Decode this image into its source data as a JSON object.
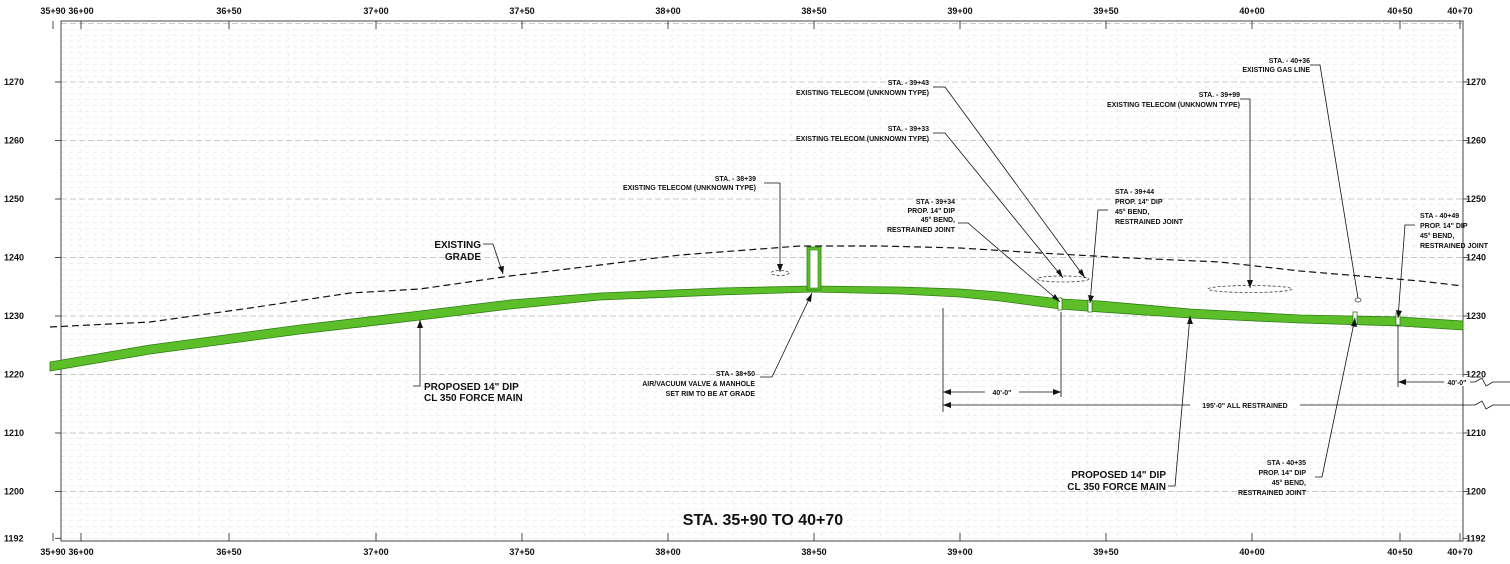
{
  "title": "STA. 35+90 TO 40+70",
  "stations_top": [
    "35+90",
    "36+00",
    "36+50",
    "37+00",
    "37+50",
    "38+00",
    "38+50",
    "39+00",
    "39+50",
    "40+00",
    "40+50",
    "40+70"
  ],
  "stations_bottom": [
    "35+90",
    "36+00",
    "36+50",
    "37+00",
    "37+50",
    "38+00",
    "38+50",
    "39+00",
    "39+50",
    "40+00",
    "40+50",
    "40+70"
  ],
  "elevations_left": [
    "1270",
    "1260",
    "1250",
    "1240",
    "1230",
    "1220",
    "1210",
    "1200",
    "1192"
  ],
  "elevations_right": [
    "1270",
    "1260",
    "1250",
    "1240",
    "1230",
    "1220",
    "1210",
    "1200",
    "1192"
  ],
  "colors": {
    "pipe": "#5cbf2a",
    "pipe_edge": "#2e7d12",
    "grid_major": "#b8b8b8",
    "grid_minor": "#dedede"
  },
  "labels": {
    "existing_grade": [
      "EXISTING",
      "GRADE"
    ],
    "proposed_main_left": [
      "PROPOSED 14\" DIP",
      "CL 350 FORCE MAIN"
    ],
    "proposed_main_right": [
      "PROPOSED 14\" DIP",
      "CL 350 FORCE MAIN"
    ],
    "telecom_3839": [
      "STA. - 38+39",
      "EXISTING TELECOM (UNKNOWN TYPE)"
    ],
    "telecom_3943": [
      "STA. - 39+43",
      "EXISTING TELECOM (UNKNOWN TYPE)"
    ],
    "telecom_3933": [
      "STA. - 39+33",
      "EXISTING TELECOM (UNKNOWN TYPE)"
    ],
    "telecom_3999": [
      "STA. - 39+99",
      "EXISTING TELECOM (UNKNOWN TYPE)"
    ],
    "gas_4036": [
      "STA. - 40+36",
      "EXISTING GAS LINE"
    ],
    "bend_3934": [
      "STA - 39+34",
      "PROP. 14\" DIP",
      "45° BEND,",
      "RESTRAINED JOINT"
    ],
    "bend_3944": [
      "STA - 39+44",
      "PROP. 14\" DIP",
      "45° BEND,",
      "RESTRAINED JOINT"
    ],
    "bend_4049": [
      "STA - 40+49",
      "PROP. 14\" DIP",
      "45° BEND,",
      "RESTRAINED JOINT"
    ],
    "bend_4035": [
      "STA - 40+35",
      "PROP. 14\" DIP",
      "45° BEND,",
      "RESTRAINED JOINT"
    ],
    "valve_3850": [
      "STA - 38+50",
      "AIR/VACUUM VALVE & MANHOLE",
      "SET RIM TO BE AT GRADE"
    ]
  },
  "dimensions": {
    "restrained_40_left": "40'-0\"",
    "restrained_40_right": "40'-0\"",
    "all_restrained": "195'-0\" ALL RESTRAINED"
  }
}
